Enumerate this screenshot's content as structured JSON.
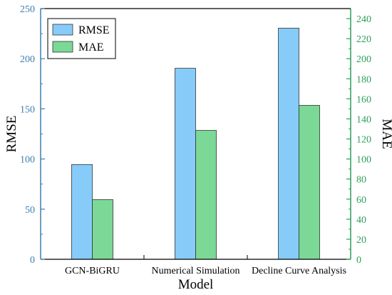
{
  "chart_data": {
    "type": "bar",
    "categories": [
      "GCN-BiGRU",
      "Numerical Simulation",
      "Decline Curve Analysis"
    ],
    "series": [
      {
        "name": "RMSE",
        "axis": "left",
        "color": "#87CBF9",
        "values": [
          94.5,
          190.5,
          230.5
        ]
      },
      {
        "name": "MAE",
        "axis": "right",
        "color": "#7BD896",
        "values": [
          59.5,
          128.5,
          153.5
        ]
      }
    ],
    "xlabel": "Model",
    "ylabel": "RMSE",
    "y2label": "MAE",
    "ylim": [
      0,
      250
    ],
    "y2lim": [
      0,
      250
    ],
    "yticks": [
      0,
      50,
      100,
      150,
      200,
      250
    ],
    "y2ticks": [
      0,
      20,
      40,
      60,
      80,
      100,
      120,
      140,
      160,
      180,
      200,
      220,
      240
    ],
    "left_axis_color": "#3D7FAE",
    "right_axis_color": "#2E9E5B",
    "legend_position": "top-left",
    "grid": false
  }
}
